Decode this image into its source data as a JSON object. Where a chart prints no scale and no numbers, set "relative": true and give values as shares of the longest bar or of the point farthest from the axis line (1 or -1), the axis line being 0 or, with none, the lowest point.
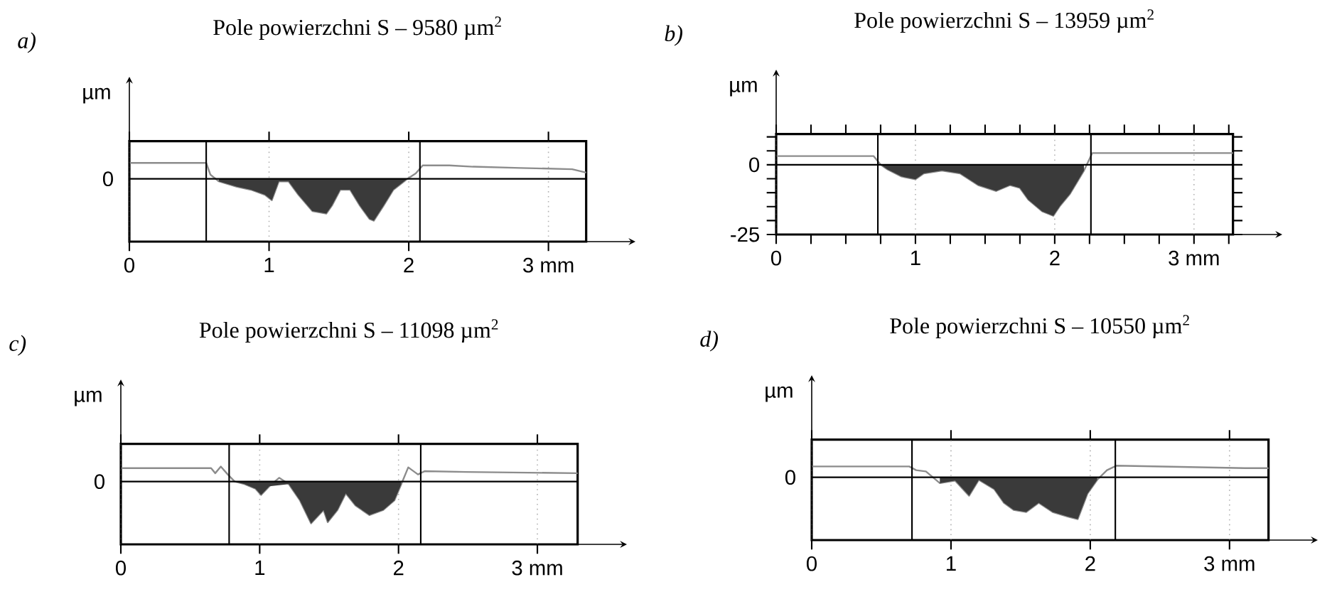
{
  "chart_data": [
    {
      "type": "line",
      "title": "Pole powierzchni S – 9580 µm$^{2}$",
      "ylabel": "µm",
      "annotations": [
        "a)"
      ],
      "relative": true,
      "x": [
        0,
        0.3,
        0.55,
        0.58,
        0.64,
        0.77,
        0.87,
        0.97,
        1.02,
        1.07,
        1.14,
        1.21,
        1.31,
        1.41,
        1.45,
        1.51,
        1.58,
        1.65,
        1.72,
        1.75,
        1.82,
        1.89,
        1.99,
        2.05,
        2.1,
        2.29,
        2.46,
        2.8,
        3.17,
        3.27
      ],
      "series": [
        {
          "type": "line",
          "color": "#8c8c8c",
          "values": [
            0.38,
            0.38,
            0.38,
            0.1,
            -0.06,
            -0.19,
            -0.26,
            -0.38,
            -0.51,
            -0.06,
            -0.06,
            -0.38,
            -0.77,
            -0.83,
            -0.64,
            -0.26,
            -0.26,
            -0.64,
            -0.96,
            -1.0,
            -0.64,
            -0.26,
            0,
            0.13,
            0.32,
            0.32,
            0.29,
            0.26,
            0.23,
            0.15
          ]
        },
        {
          "type": "area",
          "color": "#3a3a3a",
          "values": [
            null,
            null,
            null,
            null,
            -0.06,
            -0.19,
            -0.26,
            -0.38,
            -0.51,
            -0.06,
            -0.06,
            -0.38,
            -0.77,
            -0.83,
            -0.64,
            -0.26,
            -0.26,
            -0.64,
            -0.96,
            -1.0,
            -0.64,
            -0.26,
            0,
            null,
            null,
            null,
            null,
            null,
            null,
            null
          ]
        }
      ],
      "xlim": [
        0,
        3.27
      ],
      "xticks": [
        0,
        1,
        2,
        {
          "value": 3,
          "label": "3 mm"
        }
      ],
      "grid": "x",
      "ref_lines": [
        {
          "axis": "y",
          "value": 0,
          "label": "0",
          "color": "#000000"
        },
        {
          "axis": "x",
          "value": 0.55,
          "color": "#000000"
        },
        {
          "axis": "x",
          "value": 2.08,
          "color": "#000000"
        }
      ]
    },
    {
      "type": "line",
      "title": "Pole powierzchni S – 13959 µm$^{2}$",
      "ylabel": "µm",
      "annotations": [
        "b)"
      ],
      "x": [
        0,
        0.35,
        0.7,
        0.75,
        0.8,
        0.9,
        1.0,
        1.06,
        1.19,
        1.32,
        1.45,
        1.58,
        1.68,
        1.75,
        1.81,
        1.91,
        1.99,
        2.04,
        2.11,
        2.21,
        2.27,
        2.5,
        2.76,
        3.28
      ],
      "series": [
        {
          "type": "line",
          "color": "#8c8c8c",
          "values": [
            3.1,
            3.1,
            3.1,
            0,
            -1.7,
            -4.2,
            -5.2,
            -3.1,
            -2.1,
            -3.1,
            -7.3,
            -9.4,
            -7.3,
            -8.3,
            -12.5,
            -16.7,
            -18.3,
            -14.6,
            -10.4,
            -2.1,
            4.2,
            4.2,
            4.2,
            4.2
          ]
        },
        {
          "type": "area",
          "color": "#3a3a3a",
          "values": [
            null,
            null,
            null,
            0,
            -1.7,
            -4.2,
            -5.2,
            -3.1,
            -2.1,
            -3.1,
            -7.3,
            -9.4,
            -7.3,
            -8.3,
            -12.5,
            -16.7,
            -18.3,
            -14.6,
            -10.4,
            -2.1,
            null,
            null,
            null,
            null
          ]
        }
      ],
      "xlim": [
        0,
        3.28
      ],
      "ylim": [
        -25,
        11
      ],
      "xticks": [
        0,
        1,
        2,
        {
          "value": 3,
          "label": "3 mm"
        },
        {
          "value": 0.25,
          "label": null
        },
        {
          "value": 0.5,
          "label": null
        },
        {
          "value": 0.75,
          "label": null
        },
        {
          "value": 1.25,
          "label": null
        },
        {
          "value": 1.5,
          "label": null
        },
        {
          "value": 1.75,
          "label": null
        },
        {
          "value": 2.25,
          "label": null
        },
        {
          "value": 2.5,
          "label": null
        },
        {
          "value": 2.75,
          "label": null
        },
        {
          "value": 3.25,
          "label": null
        }
      ],
      "yticks": [
        -25,
        0,
        {
          "value": -20,
          "label": null
        },
        {
          "value": -15,
          "label": null
        },
        {
          "value": -10,
          "label": null
        },
        {
          "value": -5,
          "label": null
        },
        {
          "value": 5,
          "label": null
        },
        {
          "value": 10,
          "label": null
        }
      ],
      "grid": "x",
      "ref_lines": [
        {
          "axis": "y",
          "value": 0,
          "color": "#000000"
        },
        {
          "axis": "x",
          "value": 0.73,
          "color": "#000000"
        },
        {
          "axis": "x",
          "value": 2.26,
          "color": "#000000"
        }
      ]
    },
    {
      "type": "line",
      "title": "Pole powierzchni S – 11098 µm$^{2}$",
      "ylabel": "µm",
      "annotations": [
        "c)"
      ],
      "relative": true,
      "x": [
        0,
        0.35,
        0.65,
        0.68,
        0.72,
        0.77,
        0.82,
        0.89,
        0.97,
        1.01,
        1.07,
        1.14,
        1.21,
        1.29,
        1.37,
        1.46,
        1.49,
        1.56,
        1.62,
        1.69,
        1.79,
        1.89,
        1.97,
        2.02,
        2.07,
        2.14,
        2.19,
        2.49,
        3.29
      ],
      "series": [
        {
          "type": "line",
          "color": "#8c8c8c",
          "values": [
            0.32,
            0.32,
            0.32,
            0.2,
            0.36,
            0.17,
            0,
            -0.06,
            -0.17,
            -0.32,
            -0.11,
            0.09,
            -0.06,
            -0.45,
            -1.0,
            -0.68,
            -0.97,
            -0.68,
            -0.28,
            -0.57,
            -0.8,
            -0.68,
            -0.45,
            -0.06,
            0.34,
            0.17,
            0.25,
            0.23,
            0.2
          ]
        },
        {
          "type": "area",
          "color": "#3a3a3a",
          "values": [
            null,
            null,
            null,
            null,
            null,
            null,
            0,
            -0.06,
            -0.17,
            -0.32,
            -0.11,
            null,
            -0.06,
            -0.45,
            -1.0,
            -0.68,
            -0.97,
            -0.68,
            -0.28,
            -0.57,
            -0.8,
            -0.68,
            -0.45,
            -0.06,
            null,
            null,
            null,
            null,
            null
          ]
        }
      ],
      "xlim": [
        0,
        3.29
      ],
      "xticks": [
        0,
        1,
        2,
        {
          "value": 3,
          "label": "3 mm"
        }
      ],
      "grid": "x",
      "ref_lines": [
        {
          "axis": "y",
          "value": 0,
          "label": "0",
          "color": "#000000"
        },
        {
          "axis": "x",
          "value": 0.78,
          "color": "#000000"
        },
        {
          "axis": "x",
          "value": 2.16,
          "color": "#000000"
        }
      ]
    },
    {
      "type": "line",
      "title": "Pole powierzchni S – 10550 µm$^{2}$",
      "ylabel": "µm",
      "annotations": [
        "d)"
      ],
      "relative": true,
      "x": [
        0,
        0.35,
        0.7,
        0.75,
        0.82,
        0.92,
        1.03,
        1.13,
        1.2,
        1.31,
        1.38,
        1.45,
        1.54,
        1.63,
        1.73,
        1.84,
        1.91,
        1.98,
        2.05,
        2.12,
        2.19,
        3.11,
        3.28
      ],
      "series": [
        {
          "type": "line",
          "color": "#8c8c8c",
          "values": [
            0.26,
            0.26,
            0.26,
            0.17,
            0.14,
            -0.14,
            -0.08,
            -0.44,
            -0.06,
            -0.28,
            -0.61,
            -0.78,
            -0.83,
            -0.61,
            -0.83,
            -0.94,
            -1.0,
            -0.39,
            -0.06,
            0.17,
            0.28,
            0.22,
            0.22
          ]
        },
        {
          "type": "area",
          "color": "#3a3a3a",
          "values": [
            null,
            null,
            null,
            null,
            null,
            -0.14,
            -0.08,
            -0.44,
            -0.06,
            -0.28,
            -0.61,
            -0.78,
            -0.83,
            -0.61,
            -0.83,
            -0.94,
            -1.0,
            -0.39,
            -0.06,
            null,
            null,
            null,
            null
          ]
        }
      ],
      "xlim": [
        0,
        3.28
      ],
      "xticks": [
        0,
        1,
        2,
        {
          "value": 3,
          "label": "3 mm"
        }
      ],
      "grid": "x",
      "ref_lines": [
        {
          "axis": "y",
          "value": 0,
          "label": "0",
          "color": "#000000"
        },
        {
          "axis": "x",
          "value": 0.72,
          "color": "#000000"
        },
        {
          "axis": "x",
          "value": 2.18,
          "color": "#000000"
        }
      ]
    }
  ]
}
